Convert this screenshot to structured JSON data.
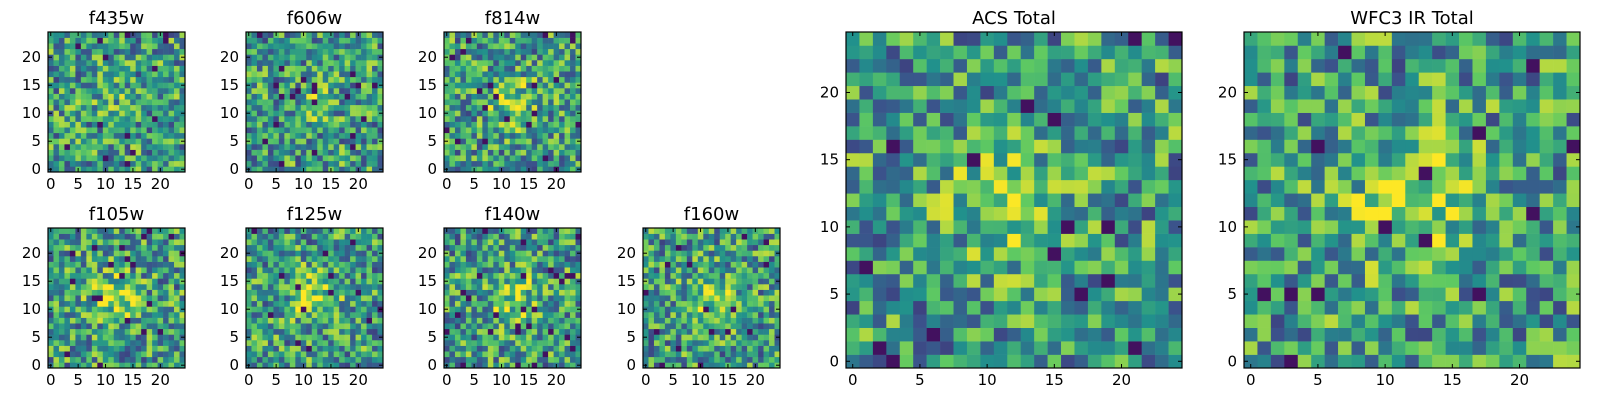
{
  "figure": {
    "colormap": [
      "#440154",
      "#3b528b",
      "#21918c",
      "#5ec962",
      "#fde725"
    ],
    "background": "#ffffff"
  },
  "chart_data": [
    {
      "type": "heatmap",
      "title": "f435w",
      "grid_size": 25,
      "seed": 11,
      "blob_strength": 0.15,
      "xlim": [
        0,
        24
      ],
      "ylim": [
        0,
        24
      ],
      "x_ticks": [
        0,
        5,
        10,
        15,
        20
      ],
      "y_ticks": [
        0,
        5,
        10,
        15,
        20
      ],
      "x_tick_labels": [
        "0",
        "5",
        "10",
        "15",
        "20"
      ],
      "y_tick_labels": [
        "0",
        "5",
        "10",
        "15",
        "20"
      ]
    },
    {
      "type": "heatmap",
      "title": "f606w",
      "grid_size": 25,
      "seed": 23,
      "blob_strength": 0.2,
      "xlim": [
        0,
        24
      ],
      "ylim": [
        0,
        24
      ],
      "x_ticks": [
        0,
        5,
        10,
        15,
        20
      ],
      "y_ticks": [
        0,
        5,
        10,
        15,
        20
      ],
      "x_tick_labels": [
        "0",
        "5",
        "10",
        "15",
        "20"
      ],
      "y_tick_labels": [
        "0",
        "5",
        "10",
        "15",
        "20"
      ]
    },
    {
      "type": "heatmap",
      "title": "f814w",
      "grid_size": 25,
      "seed": 37,
      "blob_strength": 0.45,
      "xlim": [
        0,
        24
      ],
      "ylim": [
        0,
        24
      ],
      "x_ticks": [
        0,
        5,
        10,
        15,
        20
      ],
      "y_ticks": [
        0,
        5,
        10,
        15,
        20
      ],
      "x_tick_labels": [
        "0",
        "5",
        "10",
        "15",
        "20"
      ],
      "y_tick_labels": [
        "0",
        "5",
        "10",
        "15",
        "20"
      ]
    },
    {
      "type": "heatmap",
      "title": "f105w",
      "grid_size": 25,
      "seed": 41,
      "blob_strength": 0.5,
      "xlim": [
        0,
        24
      ],
      "ylim": [
        0,
        24
      ],
      "x_ticks": [
        0,
        5,
        10,
        15,
        20
      ],
      "y_ticks": [
        0,
        5,
        10,
        15,
        20
      ],
      "x_tick_labels": [
        "0",
        "5",
        "10",
        "15",
        "20"
      ],
      "y_tick_labels": [
        "0",
        "5",
        "10",
        "15",
        "20"
      ]
    },
    {
      "type": "heatmap",
      "title": "f125w",
      "grid_size": 25,
      "seed": 53,
      "blob_strength": 0.5,
      "xlim": [
        0,
        24
      ],
      "ylim": [
        0,
        24
      ],
      "x_ticks": [
        0,
        5,
        10,
        15,
        20
      ],
      "y_ticks": [
        0,
        5,
        10,
        15,
        20
      ],
      "x_tick_labels": [
        "0",
        "5",
        "10",
        "15",
        "20"
      ],
      "y_tick_labels": [
        "0",
        "5",
        "10",
        "15",
        "20"
      ]
    },
    {
      "type": "heatmap",
      "title": "f140w",
      "grid_size": 25,
      "seed": 67,
      "blob_strength": 0.45,
      "xlim": [
        0,
        24
      ],
      "ylim": [
        0,
        24
      ],
      "x_ticks": [
        0,
        5,
        10,
        15,
        20
      ],
      "y_ticks": [
        0,
        5,
        10,
        15,
        20
      ],
      "x_tick_labels": [
        "0",
        "5",
        "10",
        "15",
        "20"
      ],
      "y_tick_labels": [
        "0",
        "5",
        "10",
        "15",
        "20"
      ]
    },
    {
      "type": "heatmap",
      "title": "f160w",
      "grid_size": 25,
      "seed": 79,
      "blob_strength": 0.45,
      "xlim": [
        0,
        24
      ],
      "ylim": [
        0,
        24
      ],
      "x_ticks": [
        0,
        5,
        10,
        15,
        20
      ],
      "y_ticks": [
        0,
        5,
        10,
        15,
        20
      ],
      "x_tick_labels": [
        "0",
        "5",
        "10",
        "15",
        "20"
      ],
      "y_tick_labels": [
        "0",
        "5",
        "10",
        "15",
        "20"
      ]
    },
    {
      "type": "heatmap",
      "title": "ACS Total",
      "grid_size": 25,
      "seed": 91,
      "blob_strength": 0.4,
      "xlim": [
        0,
        24
      ],
      "ylim": [
        0,
        24
      ],
      "x_ticks": [
        0,
        5,
        10,
        15,
        20
      ],
      "y_ticks": [
        0,
        5,
        10,
        15,
        20
      ],
      "x_tick_labels": [
        "0",
        "5",
        "10",
        "15",
        "20"
      ],
      "y_tick_labels": [
        "0",
        "5",
        "10",
        "15",
        "20"
      ]
    },
    {
      "type": "heatmap",
      "title": "WFC3 IR Total",
      "grid_size": 25,
      "seed": 103,
      "blob_strength": 0.6,
      "xlim": [
        0,
        24
      ],
      "ylim": [
        0,
        24
      ],
      "x_ticks": [
        0,
        5,
        10,
        15,
        20
      ],
      "y_ticks": [
        0,
        5,
        10,
        15,
        20
      ],
      "x_tick_labels": [
        "0",
        "5",
        "10",
        "15",
        "20"
      ],
      "y_tick_labels": [
        "0",
        "5",
        "10",
        "15",
        "20"
      ]
    }
  ]
}
